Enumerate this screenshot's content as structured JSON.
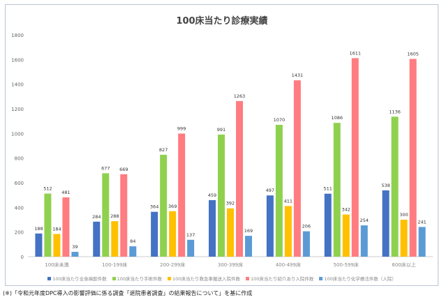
{
  "chart_data": {
    "type": "bar",
    "title": "100床当たり診療実績",
    "categories": [
      "100床未満",
      "100-199床",
      "200-299床",
      "300-399床",
      "400-499床",
      "500-599床",
      "600床以上"
    ],
    "ylim": [
      0,
      1800
    ],
    "yticks": [
      0,
      200,
      400,
      600,
      800,
      1000,
      1200,
      1400,
      1600,
      1800
    ],
    "legend_position": "bottom",
    "series": [
      {
        "name": "100床当たり全身麻酔件数",
        "color": "#4472c4",
        "values": [
          188,
          284,
          364,
          459,
          497,
          511,
          538
        ]
      },
      {
        "name": "100床当たり手術件数",
        "color": "#8fd14f",
        "values": [
          512,
          677,
          827,
          991,
          1070,
          1086,
          1136
        ]
      },
      {
        "name": "100床当たり救急車搬送入院件数",
        "color": "#ffc000",
        "values": [
          184,
          288,
          369,
          392,
          411,
          342,
          300
        ]
      },
      {
        "name": "100床当たり紹介あり入院件数",
        "color": "#ff7c80",
        "values": [
          481,
          669,
          999,
          1263,
          1431,
          1611,
          1605
        ]
      },
      {
        "name": "100床当たり化学療法件数（入院）",
        "color": "#5b9bd5",
        "values": [
          39,
          84,
          137,
          169,
          206,
          254,
          241
        ]
      }
    ]
  },
  "note": "(※)「令和元年度DPC導入の影響評価に係る調査「退院患者調査」の結果報告について」を基に作成"
}
